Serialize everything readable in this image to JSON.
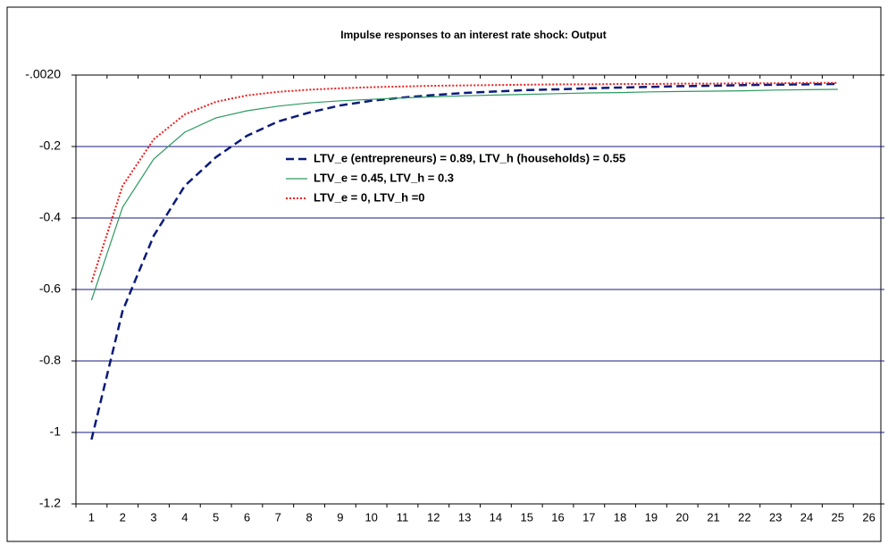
{
  "chart_data": {
    "type": "line",
    "title": "Impulse responses to an interest rate shock: Output",
    "categories": [
      "1",
      "2",
      "3",
      "4",
      "5",
      "6",
      "7",
      "8",
      "9",
      "10",
      "11",
      "12",
      "13",
      "14",
      "15",
      "16",
      "17",
      "18",
      "19",
      "20",
      "21",
      "22",
      "23",
      "24",
      "25",
      "26"
    ],
    "ylim": [
      -1.2,
      0
    ],
    "yticks": [
      -1.2,
      -1,
      -0.8,
      -0.6,
      -0.4,
      -0.2,
      {
        "value": 0,
        "label": "-.0020"
      }
    ],
    "grid": true,
    "legend": "center",
    "series": [
      {
        "name": "LTV_e (entrepreneurs) = 0.89, LTV_h (households) = 0.55",
        "color": "#0a1a7a",
        "dash": "dashed",
        "values": [
          -1.02,
          -0.66,
          -0.45,
          -0.31,
          -0.23,
          -0.17,
          -0.13,
          -0.105,
          -0.085,
          -0.072,
          -0.063,
          -0.056,
          -0.05,
          -0.046,
          -0.042,
          -0.04,
          -0.037,
          -0.035,
          -0.033,
          -0.031,
          -0.03,
          -0.028,
          -0.027,
          -0.026,
          -0.025,
          null
        ]
      },
      {
        "name": "LTV_e = 0.45, LTV_h = 0.3",
        "color": "#2e9960",
        "dash": "solid",
        "values": [
          -0.63,
          -0.37,
          -0.235,
          -0.16,
          -0.12,
          -0.1,
          -0.087,
          -0.078,
          -0.072,
          -0.068,
          -0.064,
          -0.061,
          -0.058,
          -0.056,
          -0.054,
          -0.052,
          -0.05,
          -0.049,
          -0.047,
          -0.046,
          -0.045,
          -0.044,
          -0.042,
          -0.041,
          -0.04,
          null
        ]
      },
      {
        "name": "LTV_e = 0, LTV_h =0",
        "color": "#ee1c1c",
        "dash": "dotted",
        "values": [
          -0.58,
          -0.31,
          -0.18,
          -0.11,
          -0.075,
          -0.057,
          -0.047,
          -0.041,
          -0.037,
          -0.034,
          -0.032,
          -0.03,
          -0.029,
          -0.028,
          -0.027,
          -0.026,
          -0.026,
          -0.025,
          -0.025,
          -0.024,
          -0.024,
          -0.023,
          -0.023,
          -0.022,
          -0.022,
          null
        ]
      }
    ]
  }
}
